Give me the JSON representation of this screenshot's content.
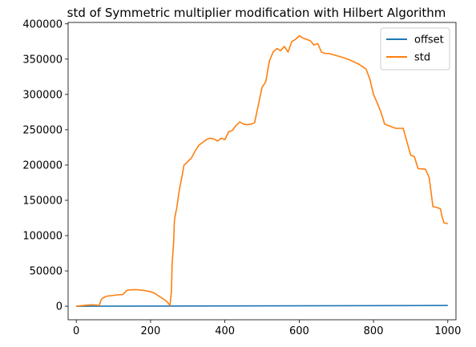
{
  "chart_data": {
    "type": "line",
    "title": "std of Symmetric multiplier modification with Hilbert Algorithm",
    "xlabel": "",
    "ylabel": "",
    "xlim": [
      -22,
      1022
    ],
    "ylim": [
      -19200,
      402000
    ],
    "x_ticks": [
      0,
      200,
      400,
      600,
      800,
      1000
    ],
    "x_tick_labels": [
      "0",
      "200",
      "400",
      "600",
      "800",
      "1000"
    ],
    "y_ticks": [
      0,
      50000,
      100000,
      150000,
      200000,
      250000,
      300000,
      350000,
      400000
    ],
    "y_tick_labels": [
      "0",
      "50000",
      "100000",
      "150000",
      "200000",
      "250000",
      "300000",
      "350000",
      "400000"
    ],
    "grid": false,
    "legend_position": "top-right",
    "series": [
      {
        "name": "offset",
        "color": "#1f77b4",
        "x": [
          0,
          1000
        ],
        "y": [
          0,
          1000
        ]
      },
      {
        "name": "std",
        "color": "#ff7f0e",
        "x": [
          0,
          20,
          40,
          55,
          62,
          66,
          70,
          80,
          95,
          110,
          125,
          130,
          135,
          140,
          160,
          180,
          200,
          210,
          220,
          235,
          245,
          252,
          256,
          258,
          262,
          264,
          266,
          270,
          272,
          276,
          280,
          285,
          290,
          295,
          300,
          310,
          320,
          330,
          340,
          350,
          360,
          370,
          380,
          390,
          400,
          410,
          420,
          430,
          440,
          450,
          460,
          470,
          480,
          490,
          500,
          510,
          520,
          530,
          540,
          550,
          560,
          570,
          580,
          590,
          600,
          610,
          620,
          630,
          640,
          650,
          660,
          670,
          680,
          700,
          720,
          740,
          760,
          780,
          790,
          800,
          810,
          820,
          830,
          840,
          860,
          880,
          900,
          910,
          920,
          940,
          950,
          960,
          970,
          980,
          985,
          990,
          1000
        ],
        "y": [
          0,
          1000,
          2000,
          1500,
          1000,
          8000,
          11000,
          14000,
          15000,
          16000,
          16500,
          19000,
          22000,
          23000,
          23500,
          22500,
          20500,
          18500,
          15000,
          10000,
          6000,
          1000,
          20000,
          60000,
          90000,
          120000,
          128000,
          138000,
          145000,
          160000,
          172000,
          185000,
          200000,
          202000,
          205000,
          210000,
          220000,
          228000,
          232000,
          236000,
          238000,
          237000,
          234000,
          238000,
          236000,
          247000,
          249000,
          256000,
          261000,
          258000,
          257000,
          258000,
          260000,
          285000,
          310000,
          318000,
          348000,
          360000,
          365000,
          362000,
          368000,
          360000,
          375000,
          378000,
          383000,
          380000,
          378000,
          376000,
          370000,
          372000,
          360000,
          358000,
          358000,
          355000,
          352000,
          348000,
          343000,
          336000,
          322000,
          300000,
          288000,
          275000,
          258000,
          256000,
          252000,
          252000,
          214000,
          212000,
          195000,
          194000,
          182000,
          141000,
          140000,
          138000,
          126000,
          118000,
          117000
        ]
      }
    ]
  }
}
